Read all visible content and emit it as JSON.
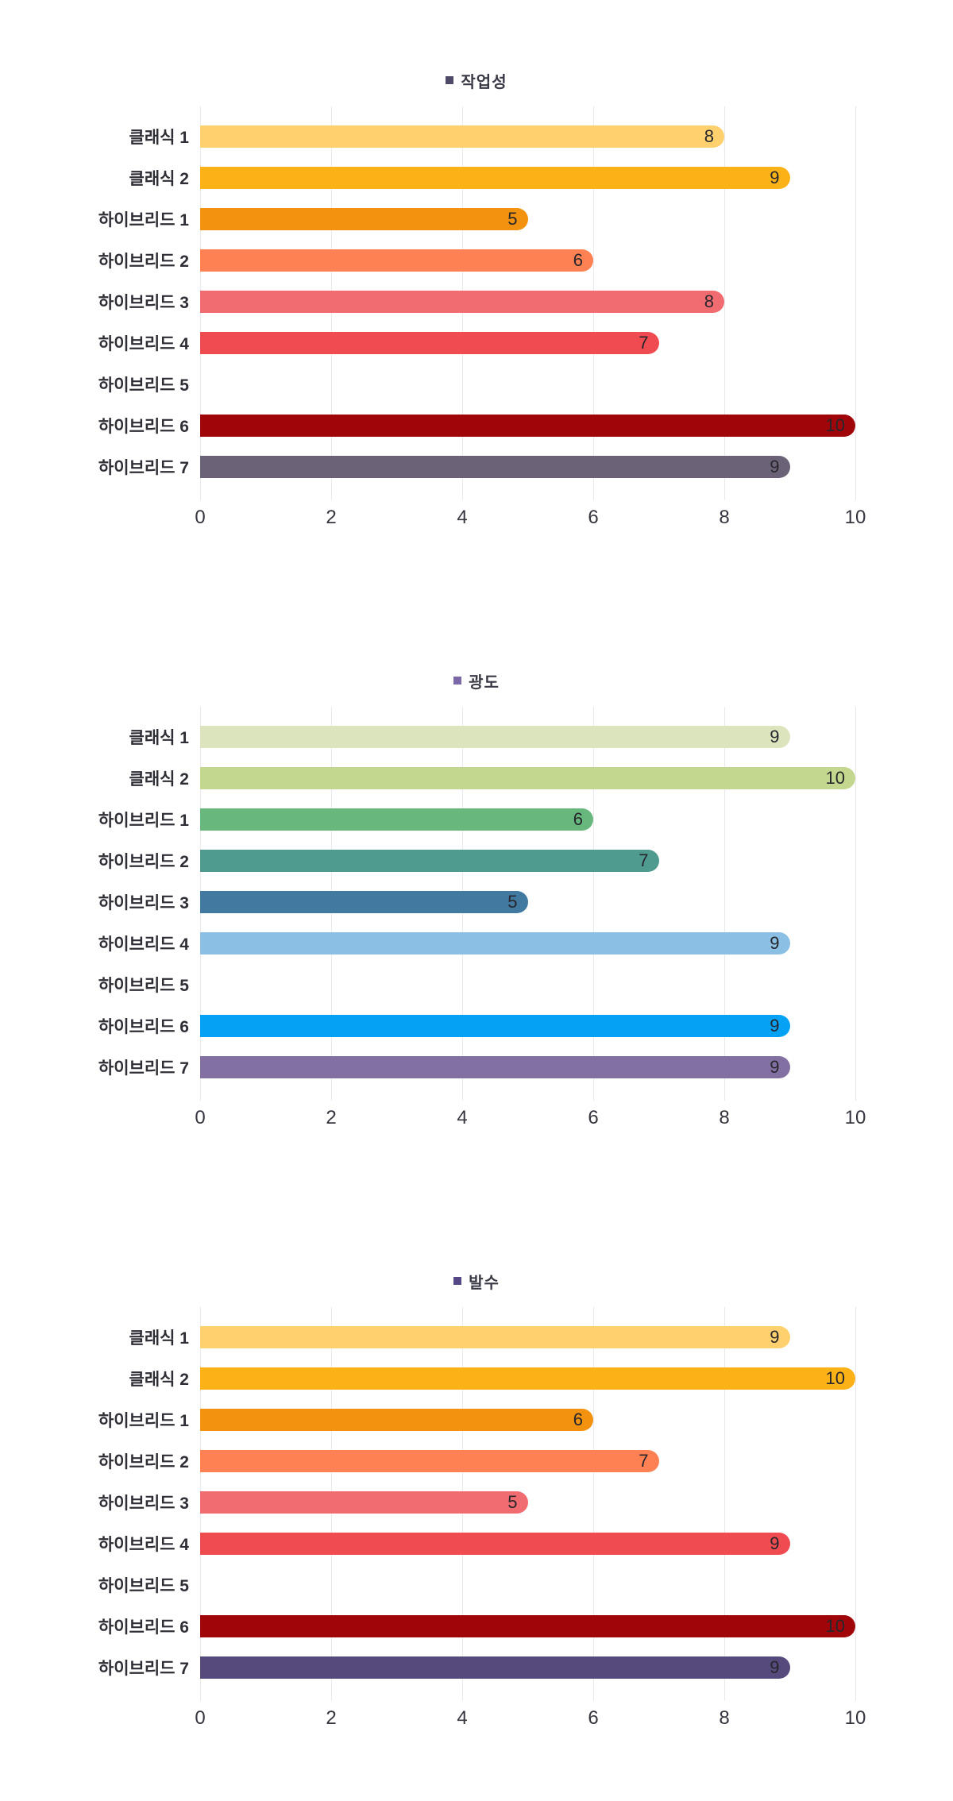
{
  "page": {
    "background": "#ffffff"
  },
  "chart_data": [
    {
      "type": "bar",
      "orientation": "horizontal",
      "title": "작업성",
      "legend": {
        "label": "작업성",
        "marker_color": "#4f4a68",
        "position": "top-center"
      },
      "categories": [
        "클래식 1",
        "클래식 2",
        "하이브리드 1",
        "하이브리드 2",
        "하이브리드 3",
        "하이브리드 4",
        "하이브리드 5",
        "하이브리드 6",
        "하이브리드 7"
      ],
      "values": [
        8,
        9,
        5,
        6,
        8,
        7,
        null,
        10,
        9
      ],
      "bar_colors": [
        "#FFD06E",
        "#FBB217",
        "#F2920E",
        "#FD8153",
        "#F16C71",
        "#EF4B50",
        null,
        "#A0050A",
        "#6B6278"
      ],
      "xlim": [
        0,
        10
      ],
      "x_ticks": [
        0,
        2,
        4,
        6,
        8,
        10
      ],
      "grid": true,
      "value_labels": "inside-end"
    },
    {
      "type": "bar",
      "orientation": "horizontal",
      "title": "광도",
      "legend": {
        "label": "광도",
        "marker_color": "#7b68a8",
        "position": "top-center"
      },
      "categories": [
        "클래식 1",
        "클래식 2",
        "하이브리드 1",
        "하이브리드 2",
        "하이브리드 3",
        "하이브리드 4",
        "하이브리드 5",
        "하이브리드 6",
        "하이브리드 7"
      ],
      "values": [
        9,
        10,
        6,
        7,
        5,
        9,
        null,
        9,
        9
      ],
      "bar_colors": [
        "#DCE4BE",
        "#C4D78E",
        "#68B87E",
        "#4F9B90",
        "#4279A0",
        "#8BC0E4",
        null,
        "#05A1F5",
        "#8370A2"
      ],
      "xlim": [
        0,
        10
      ],
      "x_ticks": [
        0,
        2,
        4,
        6,
        8,
        10
      ],
      "grid": true,
      "value_labels": "inside-end"
    },
    {
      "type": "bar",
      "orientation": "horizontal",
      "title": "발수",
      "legend": {
        "label": "발수",
        "marker_color": "#564787",
        "position": "top-center"
      },
      "categories": [
        "클래식 1",
        "클래식 2",
        "하이브리드 1",
        "하이브리드 2",
        "하이브리드 3",
        "하이브리드 4",
        "하이브리드 5",
        "하이브리드 6",
        "하이브리드 7"
      ],
      "values": [
        9,
        10,
        6,
        7,
        5,
        9,
        null,
        10,
        9
      ],
      "bar_colors": [
        "#FFD06E",
        "#FBB217",
        "#F2920E",
        "#FD8153",
        "#F16C71",
        "#EF4B50",
        null,
        "#A0050A",
        "#56497B"
      ],
      "xlim": [
        0,
        10
      ],
      "x_ticks": [
        0,
        2,
        4,
        6,
        8,
        10
      ],
      "grid": true,
      "value_labels": "inside-end"
    }
  ]
}
